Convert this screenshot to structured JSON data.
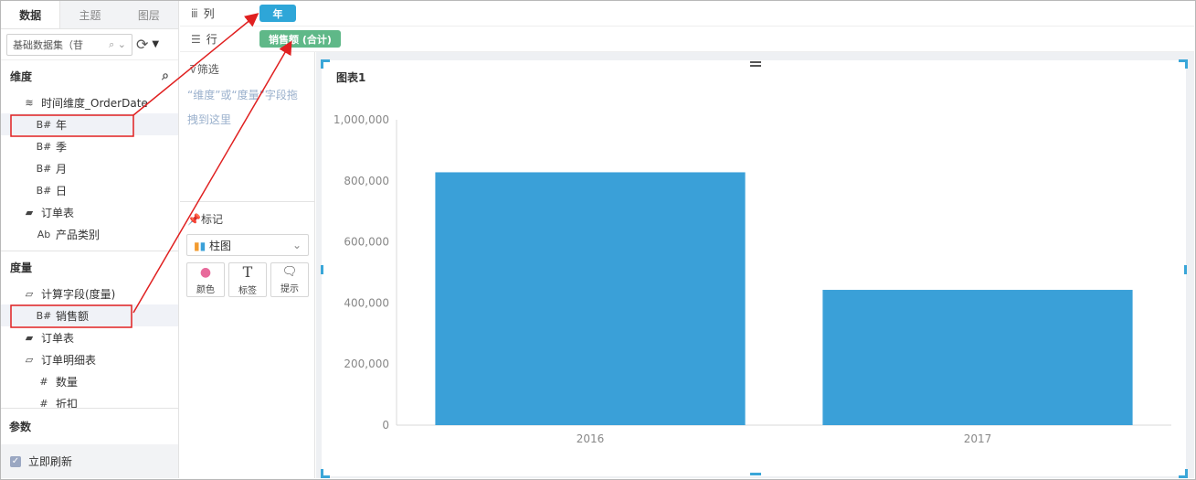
{
  "left_panel": {
    "tabs": [
      "数据",
      "主题",
      "图层"
    ],
    "dataset": {
      "value": "基础数据集（苷",
      "placeholder": "Q"
    },
    "dimension_title": "维度",
    "dimensions": {
      "time_group": "时间维度_OrderDate",
      "items": [
        {
          "icon": "B#",
          "label": "年"
        },
        {
          "icon": "B#",
          "label": "季"
        },
        {
          "icon": "B#",
          "label": "月"
        },
        {
          "icon": "B#",
          "label": "日"
        }
      ],
      "order_table": "订单表",
      "product_icon": "Ab",
      "product_category": "产品类别"
    },
    "measure_title": "度量",
    "measures": {
      "calc_group": "计算字段(度量)",
      "sales_icon": "B#",
      "sales": "销售额",
      "order_table": "订单表",
      "order_detail": "订单明细表",
      "quantity_icon": "#",
      "quantity": "数量",
      "discount": "折扣"
    },
    "params_title": "参数",
    "refresh_label": "立即刷新"
  },
  "shelves": {
    "column_label": "列",
    "column_pill": "年",
    "row_label": "行",
    "row_pill": "销售额 (合计)"
  },
  "middle_panel": {
    "filter_title": "筛选",
    "filter_hint": "“维度”或“度量”字段拖拽到这里",
    "mark_title": "标记",
    "mark_type": "柱图",
    "mark_buttons": [
      {
        "label": "颜色",
        "icon": "color-icon"
      },
      {
        "label": "标签",
        "icon": "text-icon"
      },
      {
        "label": "提示",
        "icon": "tooltip-icon"
      }
    ]
  },
  "colors": {
    "accent": "#2ea6d8",
    "bar": "#3aa0d8",
    "pill_green": "#5fb888",
    "annotation": "#e02020"
  },
  "chart_data": {
    "type": "bar",
    "title": "图表1",
    "categories": [
      "2016",
      "2017"
    ],
    "values": [
      828000,
      443000
    ],
    "ylim": [
      0,
      1000000
    ],
    "yticks": [
      0,
      200000,
      400000,
      600000,
      800000,
      1000000
    ],
    "ytick_labels": [
      "0",
      "200,000",
      "400,000",
      "600,000",
      "800,000",
      "1,000,000"
    ],
    "xlabel": "",
    "ylabel": "",
    "grid": false
  }
}
